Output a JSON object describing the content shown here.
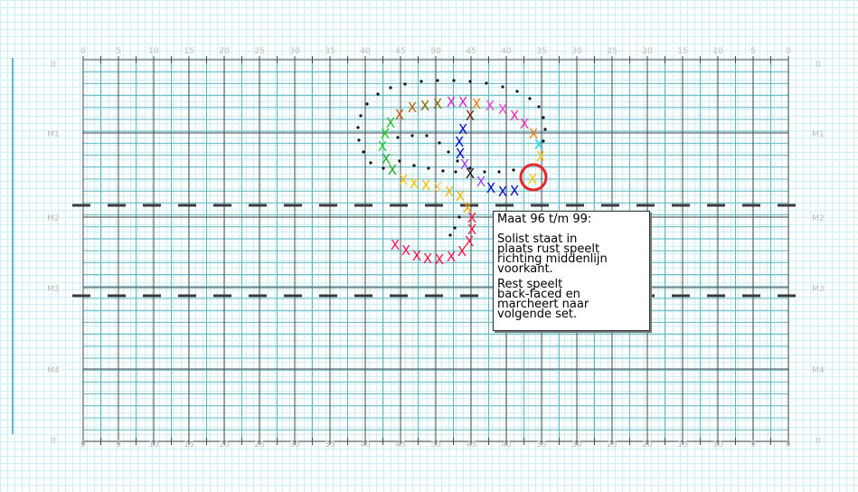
{
  "field": {
    "yard_labels": [
      "0",
      "5",
      "10",
      "15",
      "20",
      "25",
      "30",
      "35",
      "40",
      "45",
      "50",
      "45",
      "40",
      "35",
      "30",
      "25",
      "20",
      "15",
      "10",
      "5",
      "0"
    ],
    "row_labels": [
      "0",
      "M1",
      "M2",
      "M3",
      "M4",
      "0"
    ],
    "colors": {
      "background": "#ffffff",
      "fine_grid": "#cfeff2",
      "step_grid": "#5fb7c4",
      "major_line": "#4a4a4a",
      "label": "#bbbbbb",
      "dash": "#3a3a3a"
    }
  },
  "note": {
    "title": "Maat 96 t/m 99:",
    "para1": "Solist staat in\nplaats rust speelt\nrichting middenlijn\nvoorkant.",
    "para2": "Rest speelt\nback-faced en\nmarcheert naar\nvolgende set."
  },
  "markers": {
    "cross_glyph": "X",
    "solist_marker": "red-circle",
    "solist_color": "#e8232a",
    "path_dot_color": "#111111"
  }
}
